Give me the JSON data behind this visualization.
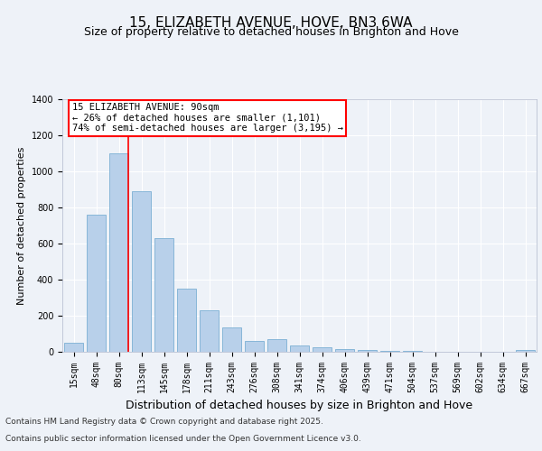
{
  "title": "15, ELIZABETH AVENUE, HOVE, BN3 6WA",
  "subtitle": "Size of property relative to detached houses in Brighton and Hove",
  "xlabel": "Distribution of detached houses by size in Brighton and Hove",
  "ylabel": "Number of detached properties",
  "categories": [
    "15sqm",
    "48sqm",
    "80sqm",
    "113sqm",
    "145sqm",
    "178sqm",
    "211sqm",
    "243sqm",
    "276sqm",
    "308sqm",
    "341sqm",
    "374sqm",
    "406sqm",
    "439sqm",
    "471sqm",
    "504sqm",
    "537sqm",
    "569sqm",
    "602sqm",
    "634sqm",
    "667sqm"
  ],
  "values": [
    50,
    760,
    1100,
    890,
    630,
    350,
    230,
    135,
    60,
    68,
    35,
    25,
    15,
    8,
    5,
    3,
    0,
    0,
    0,
    0,
    10
  ],
  "bar_color": "#b8d0ea",
  "bar_edge_color": "#7bafd4",
  "vline_index": 2,
  "annotation_text_line1": "15 ELIZABETH AVENUE: 90sqm",
  "annotation_text_line2": "← 26% of detached houses are smaller (1,101)",
  "annotation_text_line3": "74% of semi-detached houses are larger (3,195) →",
  "ylim": [
    0,
    1400
  ],
  "yticks": [
    0,
    200,
    400,
    600,
    800,
    1000,
    1200,
    1400
  ],
  "footer_line1": "Contains HM Land Registry data © Crown copyright and database right 2025.",
  "footer_line2": "Contains public sector information licensed under the Open Government Licence v3.0.",
  "background_color": "#eef2f8",
  "plot_bg_color": "#eef2f8",
  "grid_color": "#ffffff",
  "title_fontsize": 11,
  "subtitle_fontsize": 9,
  "xlabel_fontsize": 9,
  "ylabel_fontsize": 8,
  "tick_fontsize": 7,
  "annot_fontsize": 7.5,
  "footer_fontsize": 6.5
}
